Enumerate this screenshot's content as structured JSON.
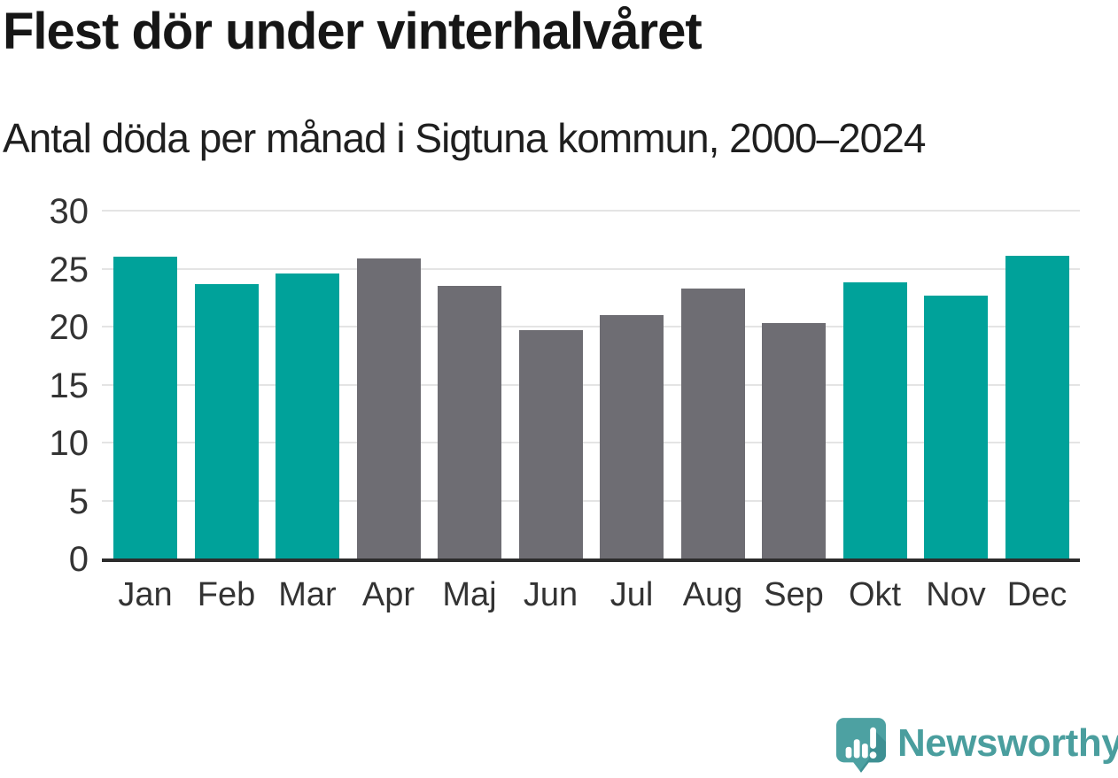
{
  "header": {
    "title": "Flest dör under vinterhalvåret",
    "subtitle": "Antal döda per månad i Sigtuna kommun, 2000–2024"
  },
  "chart_data": {
    "type": "bar",
    "title": "Flest dör under vinterhalvåret",
    "subtitle": "Antal döda per månad i Sigtuna kommun, 2000–2024",
    "categories": [
      "Jan",
      "Feb",
      "Mar",
      "Apr",
      "Maj",
      "Jun",
      "Jul",
      "Aug",
      "Sep",
      "Okt",
      "Nov",
      "Dec"
    ],
    "values": [
      26.0,
      23.7,
      24.6,
      25.9,
      23.5,
      19.7,
      21.0,
      23.3,
      20.3,
      23.8,
      22.7,
      26.1
    ],
    "highlighted_categories": [
      "Jan",
      "Feb",
      "Mar",
      "Okt",
      "Nov",
      "Dec"
    ],
    "xlabel": "",
    "ylabel": "",
    "ylim": [
      0,
      30
    ],
    "yticks": [
      0,
      5,
      10,
      15,
      20,
      25,
      30
    ],
    "grid": true,
    "legend": "none",
    "colors": {
      "highlight_bar": "#00a29a",
      "default_bar": "#6e6d73",
      "gridline": "#e4e4e4",
      "axis_line": "#2c2c2c",
      "tick_label": "#333333"
    }
  },
  "footer": {
    "brand": "Newsworthy",
    "brand_color": "#4a9e9e",
    "logo_icon": "newsworthy-speech-bubble-bar-chart-icon",
    "logo_icon_color": "#4da1a2",
    "logo_icon_shadow_color": "#3e9093"
  }
}
